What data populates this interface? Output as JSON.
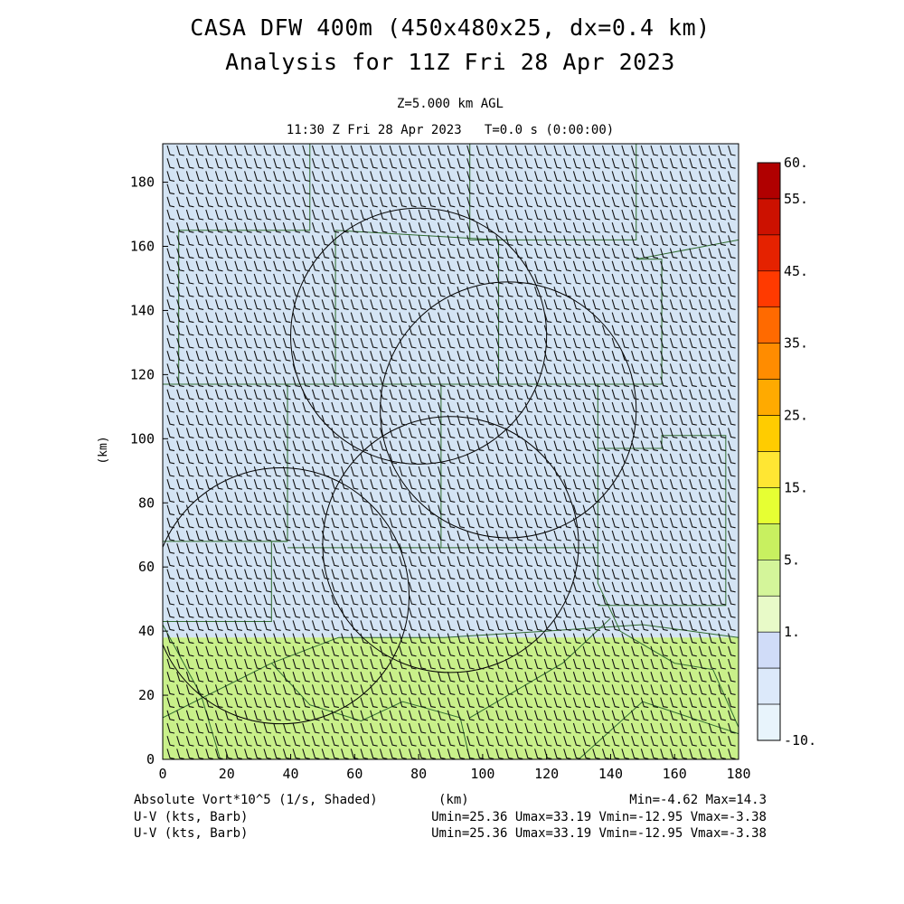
{
  "header": {
    "title_line1": "CASA DFW 400m (450x480x25, dx=0.4 km)",
    "title_line2": "Analysis for 11Z Fri 28 Apr 2023",
    "level": "Z=5.000 km AGL",
    "time": "11:30 Z Fri 28 Apr 2023   T=0.0 s (0:00:00)"
  },
  "footer": {
    "field_label": "Absolute Vort*10^5 (1/s, Shaded)",
    "x_unit": "(km)",
    "minmax": "Min=-4.62 Max=14.3",
    "barb1_label": "U-V (kts, Barb)",
    "barb1_stats": "Umin=25.36 Umax=33.19 Vmin=-12.95 Vmax=-3.38",
    "barb2_label": "U-V (kts, Barb)",
    "barb2_stats": "Umin=25.36 Umax=33.19 Vmin=-12.95 Vmax=-3.38"
  },
  "colors": {
    "low_vort": "#d4e4f4",
    "mid_vort": "#c9f08a",
    "map_lines": "#2f6b2f",
    "barbs": "#111111"
  },
  "chart_data": {
    "type": "heatmap",
    "xlabel": "(km)",
    "ylabel": "(km)",
    "xlim": [
      0,
      180
    ],
    "ylim": [
      0,
      192
    ],
    "xticks": [
      0,
      20,
      40,
      60,
      80,
      100,
      120,
      140,
      160,
      180
    ],
    "yticks": [
      0,
      20,
      40,
      60,
      80,
      100,
      120,
      140,
      160,
      180
    ],
    "field": "Absolute Vort*10^5 (1/s)",
    "field_min": -4.62,
    "field_max": 14.3,
    "regions": [
      {
        "y_range": [
          38,
          192
        ],
        "level": "1 to 5",
        "color": "#d4e4f4"
      },
      {
        "y_range": [
          0,
          38
        ],
        "level": "5 to 10",
        "color": "#c9f08a"
      }
    ],
    "colorbar": {
      "labels": [
        "60.",
        "55.",
        "45.",
        "35.",
        "25.",
        "15.",
        "5.",
        "1.",
        "-10."
      ],
      "colors": [
        "#b00000",
        "#cc1100",
        "#e52200",
        "#ff3a00",
        "#ff6a00",
        "#ff8c00",
        "#ffaa00",
        "#ffcc00",
        "#ffe633",
        "#e6ff33",
        "#c8f060",
        "#d4f59a",
        "#e8fac8",
        "#d0dcf8",
        "#dce9fa",
        "#e8f4fc"
      ]
    },
    "radar_circles": [
      {
        "center_km": [
          80,
          132
        ],
        "radius_km": 40
      },
      {
        "center_km": [
          108,
          109
        ],
        "radius_km": 40
      },
      {
        "center_km": [
          90,
          67
        ],
        "radius_km": 40
      },
      {
        "center_km": [
          37,
          51
        ],
        "radius_km": 40
      }
    ],
    "wind_barbs": {
      "u_range_kts": [
        25.36,
        33.19
      ],
      "v_range_kts": [
        -12.95,
        -3.38
      ]
    }
  }
}
